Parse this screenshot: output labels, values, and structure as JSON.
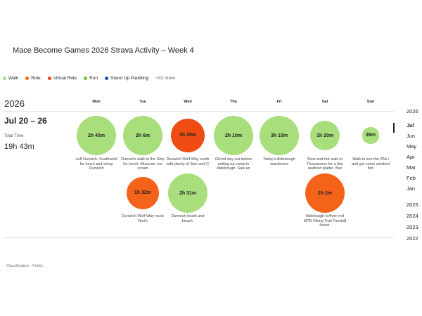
{
  "header": {
    "title": "Mace Become Games 2026 Strava Activity – Week 4"
  },
  "legend": [
    {
      "name": "Walk",
      "color": "#a8de7c"
    },
    {
      "name": "Ride",
      "color": "#f5621a"
    },
    {
      "name": "Virtual Ride",
      "color": "#e2461c"
    },
    {
      "name": "Run",
      "color": "#6cc23a"
    },
    {
      "name": "Stand Up Paddling",
      "color": "#1f4ea8"
    }
  ],
  "legend_more": "+32 more",
  "week": {
    "year": "2026",
    "range": "Jul 20 – 26",
    "total_label": "Total Time",
    "total": "19h 43m"
  },
  "days": [
    "Mon",
    "Tue",
    "Wed",
    "Thu",
    "Fri",
    "Sat",
    "Sun"
  ],
  "activities": [
    {
      "day": 0,
      "row": 0,
      "duration": "2h 45m",
      "color": "#a8de7c",
      "caption": "Left Norwich. Southwold for lunch and setup Dunwich"
    },
    {
      "day": 1,
      "row": 0,
      "duration": "2h 6m",
      "color": "#a8de7c",
      "caption": "Dunwich walk to the Ship for lunch. Museum. Ice cream"
    },
    {
      "day": 2,
      "row": 0,
      "duration": "1h 39m",
      "color": "#ee4c12",
      "caption": "Dunwich Wolf Way south with plenty of Size well C"
    },
    {
      "day": 3,
      "row": 0,
      "duration": "2h 10m",
      "color": "#a8de7c",
      "caption": "Orford day out before setting up camp in Aldebough. Saw an"
    },
    {
      "day": 4,
      "row": 0,
      "duration": "3h 10m",
      "color": "#a8de7c",
      "caption": "Today's Aldebough wanderers"
    },
    {
      "day": 5,
      "row": 0,
      "duration": "1h 20m",
      "color": "#a8de7c",
      "caption": "Slow and hot walk to Thorpeness for a fine seafood platter. Bus"
    },
    {
      "day": 6,
      "row": 0,
      "duration": "26m",
      "color": "#a8de7c",
      "caption": "Walk to see the RNLI and get some smoked fish"
    },
    {
      "day": 1,
      "row": 1,
      "duration": "1h 32m",
      "color": "#f5621a",
      "caption": "Dunwich Wolf Way route North"
    },
    {
      "day": 2,
      "row": 1,
      "duration": "2h 31m",
      "color": "#a8de7c",
      "caption": "Dunwich heath and beach."
    },
    {
      "day": 5,
      "row": 1,
      "duration": "2h 2m",
      "color": "#f5621a",
      "caption": "Aldebough to/from red MTB Viking Trail Tunstall forest."
    }
  ],
  "nav": {
    "year": "2026",
    "months": [
      "Jul",
      "Jun",
      "May",
      "Apr",
      "Mar",
      "Feb",
      "Jan"
    ],
    "years": [
      "2025",
      "2024",
      "2023",
      "2022"
    ]
  },
  "footer": "Classification - Public"
}
